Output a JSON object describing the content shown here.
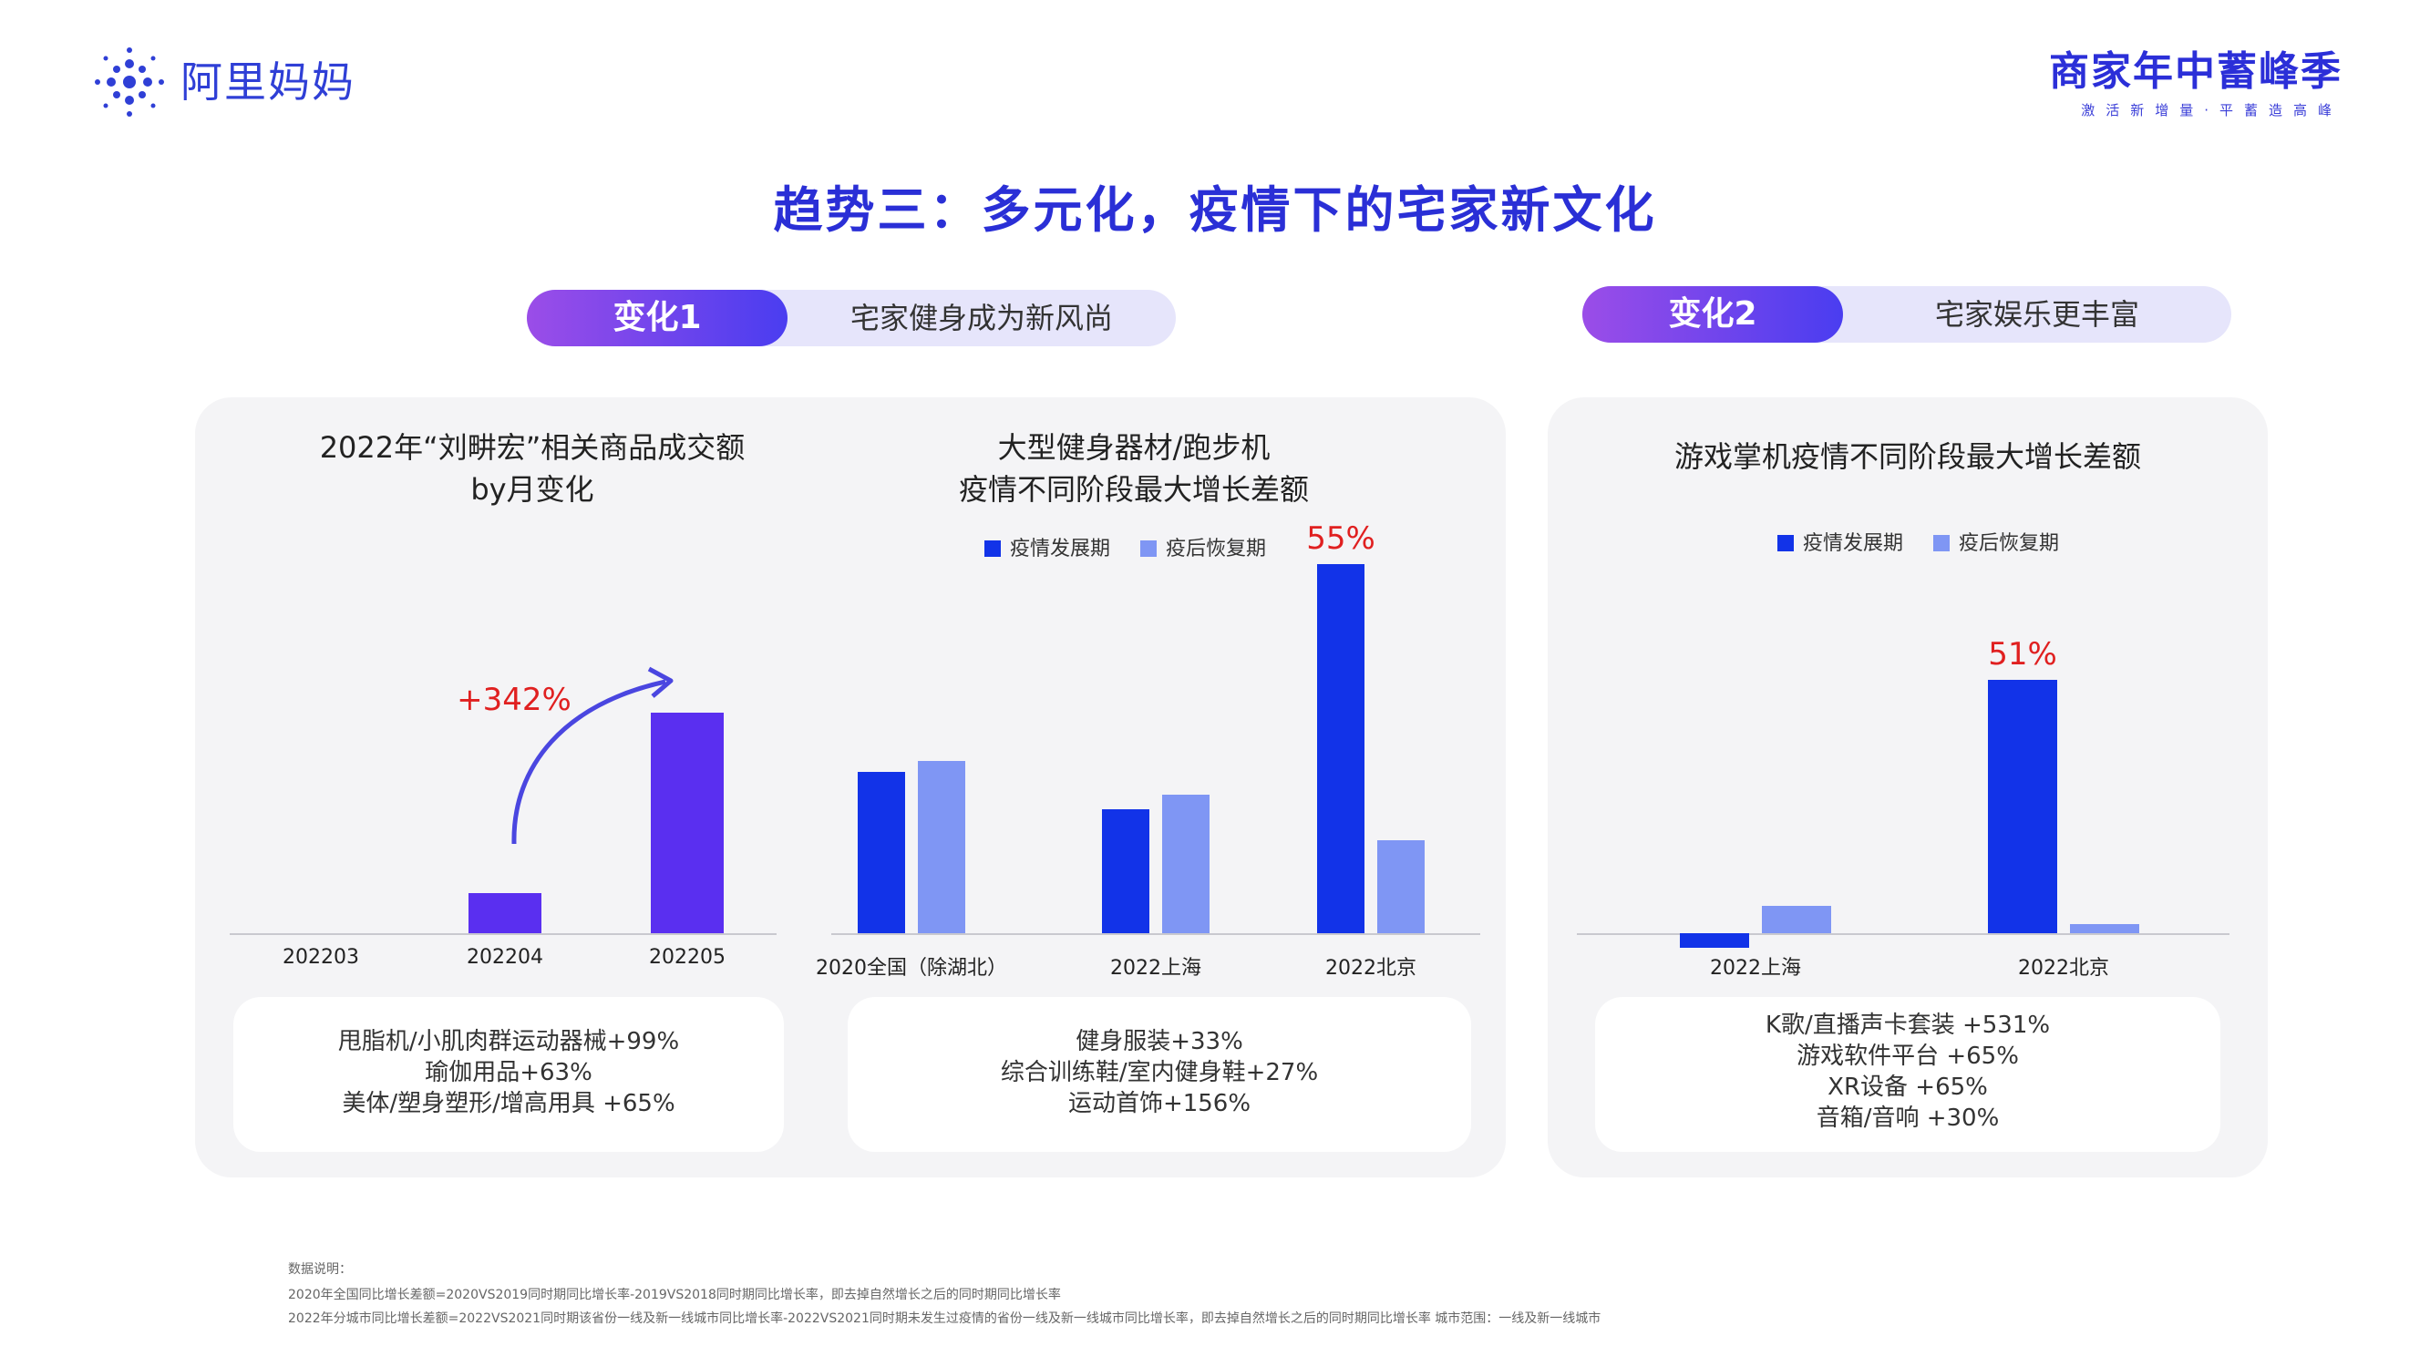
{
  "header": {
    "logo_text": "阿里妈妈",
    "campaign_title": "商家年中蓄峰季",
    "campaign_subtitle": "激活新增量·平蓄造高峰"
  },
  "page_title": "趋势三：多元化，疫情下的宅家新文化",
  "changes": [
    {
      "badge": "变化1",
      "label": "宅家健身成为新风尚"
    },
    {
      "badge": "变化2",
      "label": "宅家娱乐更丰富"
    }
  ],
  "colors": {
    "bar_purple": "#5a2ff0",
    "series_dark": "#1233e8",
    "series_light": "#7f96f4",
    "accent_red": "#e02020",
    "title_blue": "#2a2fd6"
  },
  "chart_data": [
    {
      "type": "bar",
      "title": "2022年“刘畊宏”相关商品成交额 by月变化",
      "categories": [
        "202203",
        "202204",
        "202205"
      ],
      "values": [
        0,
        0.18,
        1.0
      ],
      "annotation": "+342%",
      "notes": [
        "甩脂机/小肌肉群运动器械+99%",
        "瑜伽用品+63%",
        "美体/塑身塑形/增高用具 +65%"
      ]
    },
    {
      "type": "bar",
      "title": "大型健身器材/跑步机 疫情不同阶段最大增长差额",
      "categories": [
        "2020全国（除湖北）",
        "2022上海",
        "2022北京"
      ],
      "series": [
        {
          "name": "疫情发展期",
          "values": [
            24,
            18.5,
            55
          ]
        },
        {
          "name": "疫后恢复期",
          "values": [
            25.7,
            20.7,
            13.9
          ]
        }
      ],
      "data_labels": [
        {
          "category": "2022北京",
          "series": "疫情发展期",
          "text": "55%"
        }
      ],
      "notes": [
        "健身服装+33%",
        "综合训练鞋/室内健身鞋+27%",
        "运动首饰+156%"
      ]
    },
    {
      "type": "bar",
      "title": "游戏掌机疫情不同阶段最大增长差额",
      "categories": [
        "2022上海",
        "2022北京"
      ],
      "series": [
        {
          "name": "疫情发展期",
          "values": [
            -3,
            51
          ]
        },
        {
          "name": "疫后恢复期",
          "values": [
            5.5,
            1.8
          ]
        }
      ],
      "data_labels": [
        {
          "category": "2022北京",
          "series": "疫情发展期",
          "text": "51%"
        }
      ],
      "notes": [
        "K歌/直播声卡套装  +531%",
        "游戏软件平台  +65%",
        "XR设备  +65%",
        "音箱/音响  +30%"
      ]
    }
  ],
  "chart_titles": {
    "c1_line1": "2022年“刘畊宏”相关商品成交额",
    "c1_line2": "by月变化",
    "c2_line1": "大型健身器材/跑步机",
    "c2_line2": "疫情不同阶段最大增长差额",
    "c3_line1": "游戏掌机疫情不同阶段最大增长差额"
  },
  "footnotes": [
    "数据说明：",
    "2020年全国同比增长差额=2020VS2019同时期同比增长率-2019VS2018同时期同比增长率，即去掉自然增长之后的同时期同比增长率",
    "2022年分城市同比增长差额=2022VS2021同时期该省份一线及新一线城市同比增长率-2022VS2021同时期未发生过疫情的省份一线及新一线城市同比增长率，即去掉自然增长之后的同时期同比增长率 城市范围：一线及新一线城市"
  ]
}
